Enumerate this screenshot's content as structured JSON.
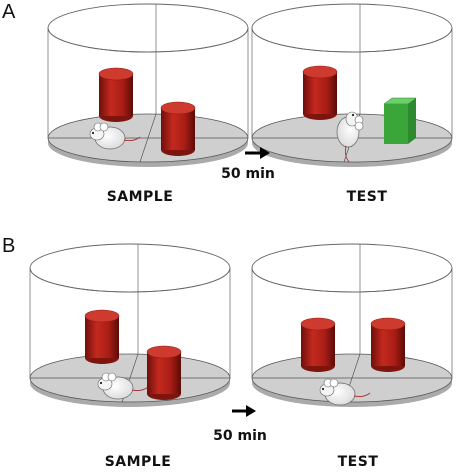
{
  "panels": [
    {
      "letter": "A",
      "left_label": "SAMPLE",
      "right_label": "TEST",
      "interval": "50 min",
      "sample_objects": [
        "red-cylinder",
        "red-cylinder"
      ],
      "test_objects": [
        "red-cylinder",
        "green-cube"
      ]
    },
    {
      "letter": "B",
      "left_label": "SAMPLE",
      "right_label": "TEST",
      "interval": "50 min",
      "sample_objects": [
        "red-cylinder",
        "red-cylinder"
      ],
      "test_objects": [
        "red-cylinder",
        "red-cylinder"
      ]
    }
  ],
  "colors": {
    "cylinder_red": "#b3221a",
    "cube_green": "#3aa63a",
    "arena_floor": "#cfcfcf",
    "arena_line": "#555555"
  },
  "icons": [
    "arena-icon",
    "mouse-icon",
    "arrow-right-icon"
  ]
}
